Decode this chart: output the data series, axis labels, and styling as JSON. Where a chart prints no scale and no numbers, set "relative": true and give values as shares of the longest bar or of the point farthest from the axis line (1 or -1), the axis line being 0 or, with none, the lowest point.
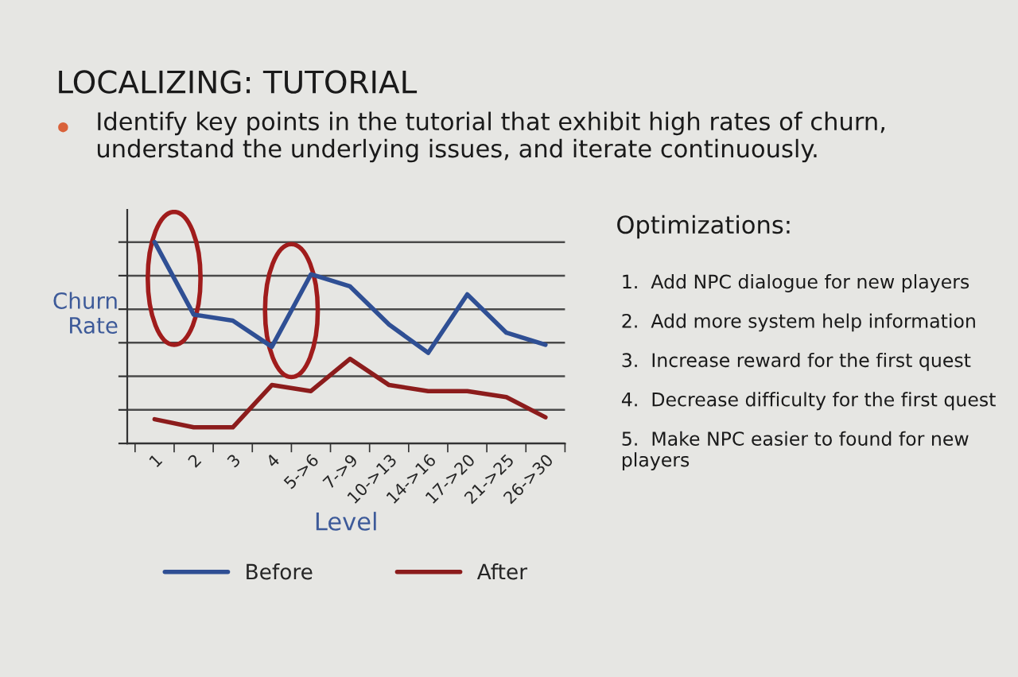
{
  "chart_data": {
    "type": "line",
    "title": "LOCALIZING: TUTORIAL",
    "subtitle": "Identify key points in the tutorial that exhibit high rates of churn, understand the underlying issues, and iterate continuously.",
    "xlabel": "Level",
    "ylabel": "Churn\nRate",
    "categories": [
      "1",
      "2",
      "3",
      "4",
      "5->6",
      "7->9",
      "10->13",
      "14->16",
      "17->20",
      "21->25",
      "26->30"
    ],
    "series": [
      {
        "name": "Before",
        "color": "#2f4f94",
        "values": [
          1.0,
          0.64,
          0.61,
          0.48,
          0.84,
          0.78,
          0.59,
          0.45,
          0.74,
          0.55,
          0.49
        ]
      },
      {
        "name": "After",
        "color": "#8c1c1c",
        "values": [
          0.12,
          0.08,
          0.08,
          0.29,
          0.26,
          0.42,
          0.29,
          0.26,
          0.26,
          0.23,
          0.13
        ]
      }
    ],
    "relative": true,
    "grid": "y",
    "legend": "bottom",
    "tick_labels": "x",
    "line_style": "solid",
    "annotations": [
      "Optimizations:",
      "1.  Add NPC dialogue for new players",
      "2.  Add more system help information",
      "3.  Increase reward for the first quest",
      "4.  Decrease difficulty for the first quest",
      "5.  Make NPC easier to found for new players"
    ]
  }
}
